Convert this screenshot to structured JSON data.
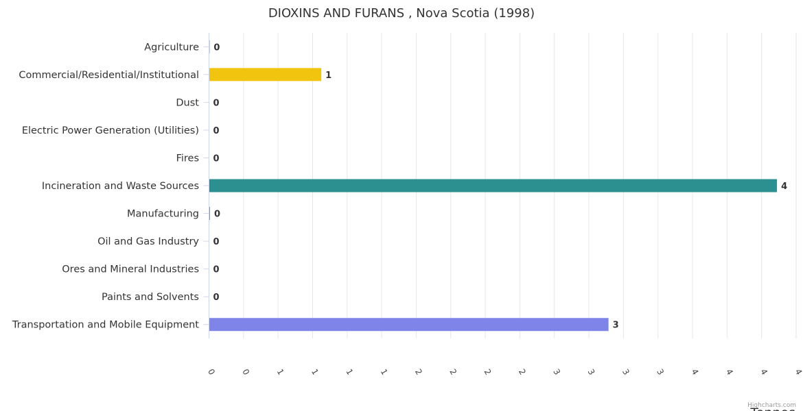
{
  "chart_data": {
    "type": "bar",
    "orientation": "horizontal",
    "title": "DIOXINS AND FURANS , Nova Scotia (1998)",
    "xlabel": "Tonnes",
    "categories": [
      "Agriculture",
      "Commercial/Residential/Institutional",
      "Dust",
      "Electric Power Generation (Utilities)",
      "Fires",
      "Incineration and Waste Sources",
      "Manufacturing",
      "Oil and Gas Industry",
      "Ores and Mineral Industries",
      "Paints and Solvents",
      "Transportation and Mobile Equipment"
    ],
    "values": [
      0.005,
      0.88,
      0,
      0,
      0,
      4.45,
      0.008,
      0,
      0,
      0,
      3.13
    ],
    "data_labels": [
      "0",
      "1",
      "0",
      "0",
      "0",
      "4",
      "0",
      "0",
      "0",
      "0",
      "3"
    ],
    "colors": [
      "#f45b5b",
      "#f1c40f",
      "#2ecc71",
      "#8e44ad",
      "#e74c3c",
      "#2b908f",
      "#e67e22",
      "#1abc9c",
      "#3498db",
      "#95a5a6",
      "#7f84e8"
    ],
    "xlim": [
      0,
      4.6
    ],
    "tick_labels": [
      "0",
      "0",
      "1",
      "1",
      "1",
      "1",
      "2",
      "2",
      "2",
      "2",
      "3",
      "3",
      "3",
      "3",
      "4",
      "4",
      "4",
      "4"
    ],
    "grid": true,
    "legend": "none"
  },
  "credits": "Highcharts.com"
}
